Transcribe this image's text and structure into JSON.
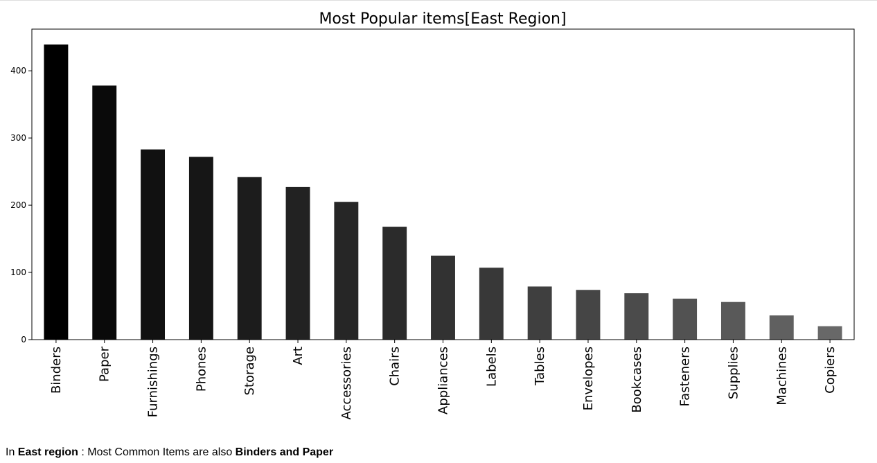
{
  "chart_data": {
    "type": "bar",
    "title": "Most Popular items[East Region]",
    "xlabel": "",
    "ylabel": "",
    "categories": [
      "Binders",
      "Paper",
      "Furnishings",
      "Phones",
      "Storage",
      "Art",
      "Accessories",
      "Chairs",
      "Appliances",
      "Labels",
      "Tables",
      "Envelopes",
      "Bookcases",
      "Fasteners",
      "Supplies",
      "Machines",
      "Copiers"
    ],
    "values": [
      439,
      378,
      283,
      272,
      242,
      227,
      205,
      168,
      125,
      107,
      79,
      74,
      69,
      61,
      56,
      36,
      20
    ],
    "ylim": [
      0,
      462
    ],
    "yticks": [
      0,
      100,
      200,
      300,
      400
    ],
    "ytick_labels": [
      "0",
      "100",
      "200",
      "300",
      "400"
    ],
    "grid": false,
    "colors": [
      "#000000",
      "#0a0a0a",
      "#111111",
      "#161616",
      "#1c1c1c",
      "#222222",
      "#262626",
      "#2b2b2b",
      "#323232",
      "#383838",
      "#3f3f3f",
      "#454545",
      "#4b4b4b",
      "#525252",
      "#595959",
      "#606060",
      "#686868"
    ]
  },
  "caption": {
    "prefix": "In ",
    "region": "East region",
    "middle": " : Most Common Items are also ",
    "items": "Binders and Paper"
  }
}
